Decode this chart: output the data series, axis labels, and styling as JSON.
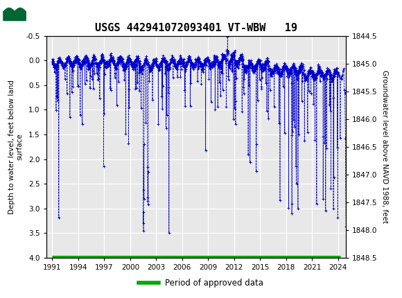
{
  "title": "USGS 442941072093401 VT-WBW   19",
  "ylabel_left": "Depth to water level, feet below land\nsurface",
  "ylabel_right": "Groundwater level above NAVD 1988, feet",
  "ylim_left": [
    -0.5,
    4.0
  ],
  "ylim_right": [
    1848.5,
    1844.5
  ],
  "xticks": [
    1991,
    1994,
    1997,
    2000,
    2003,
    2006,
    2009,
    2012,
    2015,
    2018,
    2021,
    2024
  ],
  "yticks_left": [
    -0.5,
    0.0,
    0.5,
    1.0,
    1.5,
    2.0,
    2.5,
    3.0,
    3.5,
    4.0
  ],
  "yticks_right": [
    1848.5,
    1848.0,
    1847.5,
    1847.0,
    1846.5,
    1846.0,
    1845.5,
    1845.0,
    1844.5
  ],
  "ytick_right_labels": [
    "1848.5",
    "1848.0",
    "1847.5",
    "1847.0",
    "1846.5",
    "1846.0",
    "1845.5",
    "1845.0",
    "1844.5"
  ],
  "line_color": "#0000CC",
  "marker": "+",
  "linestyle": "--",
  "approved_color": "#00AA00",
  "approved_label": "Period of approved data",
  "header_color": "#006633",
  "header_text_color": "#FFFFFF",
  "background_plot": "#E8E8E8",
  "grid_color": "#FFFFFF",
  "approved_y": 4.0,
  "approved_xstart": 1991.0,
  "approved_xend": 2024.3,
  "xlim": [
    1990.3,
    2024.9
  ]
}
